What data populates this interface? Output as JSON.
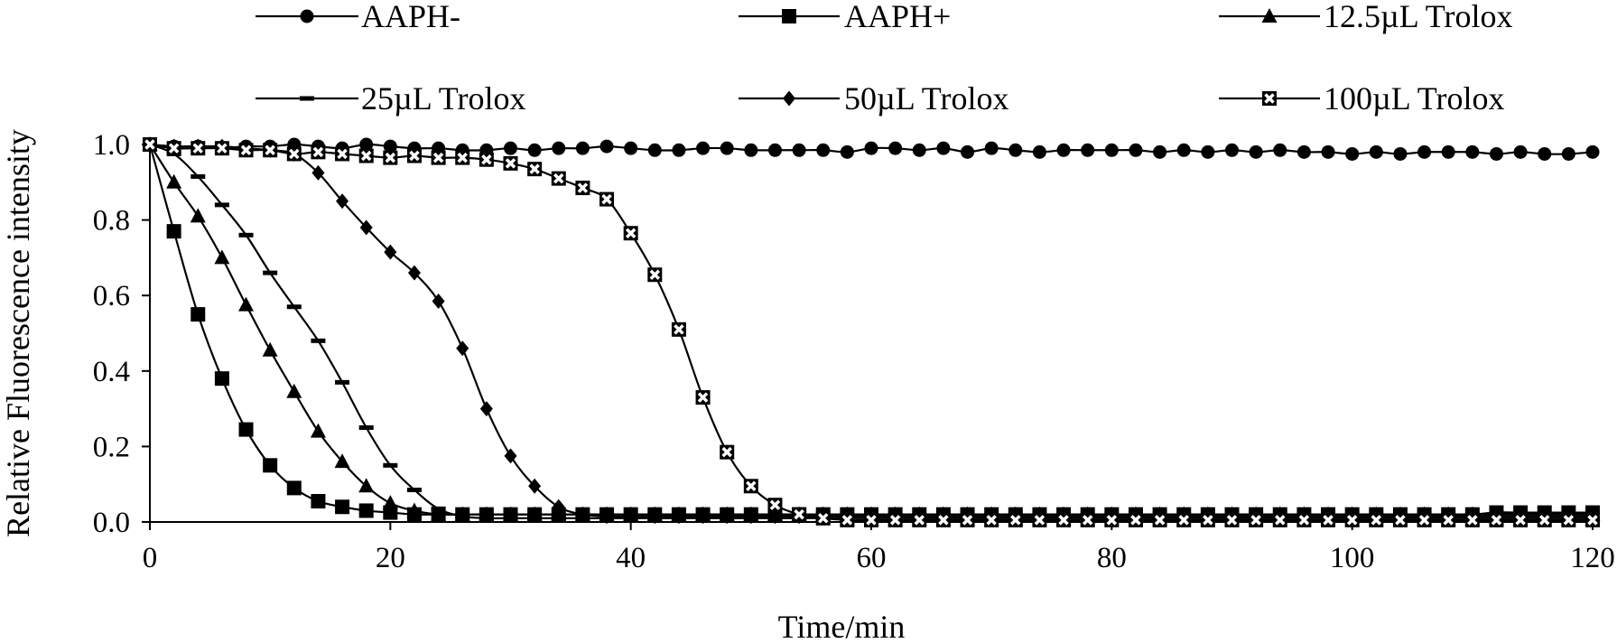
{
  "chart_data": {
    "type": "line",
    "title": "",
    "xlabel": "Time/min",
    "ylabel": "Relative Fluorescence intensity",
    "xlim": [
      0,
      120
    ],
    "ylim": [
      0,
      1.0
    ],
    "x_ticks": [
      "0",
      "20",
      "40",
      "60",
      "80",
      "100",
      "120"
    ],
    "y_ticks": [
      "0.0",
      "0.2",
      "0.4",
      "0.6",
      "0.8",
      "1.0"
    ],
    "grid": false,
    "legend_position": "top",
    "series": [
      {
        "name": "AAPH-",
        "marker": "circle",
        "x": [
          0,
          2,
          4,
          6,
          8,
          10,
          12,
          14,
          16,
          18,
          20,
          22,
          24,
          26,
          28,
          30,
          32,
          34,
          36,
          38,
          40,
          42,
          44,
          46,
          48,
          50,
          52,
          54,
          56,
          58,
          60,
          62,
          64,
          66,
          68,
          70,
          72,
          74,
          76,
          78,
          80,
          82,
          84,
          86,
          88,
          90,
          92,
          94,
          96,
          98,
          100,
          102,
          104,
          106,
          108,
          110,
          112,
          114,
          116,
          118,
          120
        ],
        "y": [
          1.0,
          0.995,
          0.995,
          0.99,
          0.995,
          0.995,
          1.0,
          0.995,
          0.99,
          1.0,
          0.995,
          0.99,
          0.99,
          0.985,
          0.985,
          0.99,
          0.985,
          0.99,
          0.99,
          0.995,
          0.99,
          0.985,
          0.985,
          0.99,
          0.99,
          0.985,
          0.985,
          0.985,
          0.985,
          0.98,
          0.99,
          0.99,
          0.985,
          0.99,
          0.98,
          0.99,
          0.985,
          0.98,
          0.985,
          0.985,
          0.985,
          0.985,
          0.98,
          0.985,
          0.98,
          0.985,
          0.98,
          0.985,
          0.98,
          0.98,
          0.975,
          0.98,
          0.975,
          0.98,
          0.98,
          0.98,
          0.975,
          0.98,
          0.975,
          0.975,
          0.98
        ]
      },
      {
        "name": "AAPH+",
        "marker": "square",
        "x": [
          0,
          2,
          4,
          6,
          8,
          10,
          12,
          14,
          16,
          18,
          20,
          22,
          24,
          26,
          28,
          30,
          32,
          34,
          36,
          38,
          40,
          42,
          44,
          46,
          48,
          50,
          52,
          54,
          56,
          58,
          60,
          62,
          64,
          66,
          68,
          70,
          72,
          74,
          76,
          78,
          80,
          82,
          84,
          86,
          88,
          90,
          92,
          94,
          96,
          98,
          100,
          102,
          104,
          106,
          108,
          110,
          112,
          114,
          116,
          118,
          120
        ],
        "y": [
          1.0,
          0.77,
          0.55,
          0.38,
          0.245,
          0.15,
          0.09,
          0.055,
          0.04,
          0.03,
          0.025,
          0.02,
          0.02,
          0.02,
          0.02,
          0.02,
          0.02,
          0.02,
          0.02,
          0.02,
          0.02,
          0.02,
          0.02,
          0.02,
          0.02,
          0.02,
          0.02,
          0.02,
          0.02,
          0.02,
          0.02,
          0.02,
          0.02,
          0.02,
          0.02,
          0.02,
          0.02,
          0.02,
          0.02,
          0.02,
          0.02,
          0.02,
          0.02,
          0.02,
          0.02,
          0.02,
          0.02,
          0.02,
          0.02,
          0.02,
          0.02,
          0.02,
          0.02,
          0.02,
          0.02,
          0.02,
          0.025,
          0.025,
          0.025,
          0.025,
          0.025
        ]
      },
      {
        "name": "12.5µL Trolox",
        "marker": "triangle",
        "x": [
          0,
          2,
          4,
          6,
          8,
          10,
          12,
          14,
          16,
          18,
          20,
          22,
          24,
          26,
          28,
          30,
          32,
          34,
          36,
          38,
          40,
          42,
          44,
          46,
          48,
          50,
          52,
          54,
          56,
          58,
          60,
          62,
          64,
          66,
          68,
          70,
          72,
          74,
          76,
          78,
          80,
          82,
          84,
          86,
          88,
          90,
          92,
          94,
          96,
          98,
          100,
          102,
          104,
          106,
          108,
          110,
          112,
          114,
          116,
          118,
          120
        ],
        "y": [
          1.0,
          0.9,
          0.81,
          0.7,
          0.575,
          0.455,
          0.345,
          0.24,
          0.16,
          0.095,
          0.05,
          0.03,
          0.02,
          0.02,
          0.02,
          0.02,
          0.02,
          0.02,
          0.02,
          0.02,
          0.02,
          0.02,
          0.02,
          0.02,
          0.02,
          0.02,
          0.02,
          0.02,
          0.02,
          0.02,
          0.02,
          0.02,
          0.02,
          0.02,
          0.02,
          0.02,
          0.02,
          0.02,
          0.02,
          0.02,
          0.02,
          0.02,
          0.02,
          0.02,
          0.02,
          0.02,
          0.02,
          0.02,
          0.02,
          0.02,
          0.02,
          0.02,
          0.02,
          0.02,
          0.02,
          0.02,
          0.02,
          0.02,
          0.02,
          0.02,
          0.02
        ]
      },
      {
        "name": "25µL Trolox",
        "marker": "dash",
        "x": [
          0,
          2,
          4,
          6,
          8,
          10,
          12,
          14,
          16,
          18,
          20,
          22,
          24,
          26,
          28,
          30,
          32,
          34,
          36,
          38,
          40,
          42,
          44,
          46,
          48,
          50,
          52,
          54,
          56,
          58,
          60,
          62,
          64,
          66,
          68,
          70,
          72,
          74,
          76,
          78,
          80,
          82,
          84,
          86,
          88,
          90,
          92,
          94,
          96,
          98,
          100,
          102,
          104,
          106,
          108,
          110,
          112,
          114,
          116,
          118,
          120
        ],
        "y": [
          1.0,
          0.975,
          0.915,
          0.84,
          0.76,
          0.66,
          0.57,
          0.48,
          0.37,
          0.25,
          0.15,
          0.085,
          0.035,
          0.015,
          0.01,
          0.01,
          0.01,
          0.01,
          0.01,
          0.01,
          0.01,
          0.01,
          0.01,
          0.01,
          0.01,
          0.01,
          0.01,
          0.01,
          0.01,
          0.01,
          0.01,
          0.01,
          0.01,
          0.01,
          0.01,
          0.01,
          0.01,
          0.01,
          0.01,
          0.01,
          0.01,
          0.01,
          0.01,
          0.01,
          0.01,
          0.01,
          0.01,
          0.01,
          0.01,
          0.01,
          0.01,
          0.01,
          0.01,
          0.01,
          0.01,
          0.01,
          0.01,
          0.01,
          0.01,
          0.01,
          0.01
        ]
      },
      {
        "name": "50µL Trolox",
        "marker": "diamond",
        "x": [
          0,
          2,
          4,
          6,
          8,
          10,
          12,
          14,
          16,
          18,
          20,
          22,
          24,
          26,
          28,
          30,
          32,
          34,
          36,
          38,
          40,
          42,
          44,
          46,
          48,
          50,
          52,
          54,
          56,
          58,
          60,
          62,
          64,
          66,
          68,
          70,
          72,
          74,
          76,
          78,
          80,
          82,
          84,
          86,
          88,
          90,
          92,
          94,
          96,
          98,
          100,
          102,
          104,
          106,
          108,
          110,
          112,
          114,
          116,
          118,
          120
        ],
        "y": [
          1.0,
          0.995,
          0.995,
          0.995,
          0.99,
          0.985,
          0.975,
          0.925,
          0.85,
          0.78,
          0.715,
          0.66,
          0.585,
          0.46,
          0.3,
          0.175,
          0.095,
          0.04,
          0.02,
          0.015,
          0.015,
          0.015,
          0.015,
          0.015,
          0.015,
          0.015,
          0.015,
          0.015,
          0.015,
          0.015,
          0.015,
          0.015,
          0.015,
          0.015,
          0.015,
          0.015,
          0.015,
          0.015,
          0.015,
          0.015,
          0.015,
          0.015,
          0.015,
          0.015,
          0.015,
          0.015,
          0.015,
          0.015,
          0.015,
          0.015,
          0.015,
          0.015,
          0.015,
          0.015,
          0.015,
          0.015,
          0.015,
          0.015,
          0.015,
          0.015,
          0.015
        ]
      },
      {
        "name": "100µL Trolox",
        "marker": "hollow-square-x",
        "x": [
          0,
          2,
          4,
          6,
          8,
          10,
          12,
          14,
          16,
          18,
          20,
          22,
          24,
          26,
          28,
          30,
          32,
          34,
          36,
          38,
          40,
          42,
          44,
          46,
          48,
          50,
          52,
          54,
          56,
          58,
          60,
          62,
          64,
          66,
          68,
          70,
          72,
          74,
          76,
          78,
          80,
          82,
          84,
          86,
          88,
          90,
          92,
          94,
          96,
          98,
          100,
          102,
          104,
          106,
          108,
          110,
          112,
          114,
          116,
          118,
          120
        ],
        "y": [
          1.0,
          0.99,
          0.99,
          0.99,
          0.985,
          0.985,
          0.975,
          0.98,
          0.975,
          0.97,
          0.965,
          0.97,
          0.965,
          0.965,
          0.96,
          0.95,
          0.935,
          0.91,
          0.885,
          0.855,
          0.765,
          0.655,
          0.51,
          0.33,
          0.185,
          0.095,
          0.045,
          0.02,
          0.01,
          0.005,
          0.005,
          0.005,
          0.005,
          0.005,
          0.005,
          0.005,
          0.005,
          0.005,
          0.005,
          0.005,
          0.005,
          0.005,
          0.005,
          0.005,
          0.005,
          0.005,
          0.005,
          0.005,
          0.005,
          0.005,
          0.005,
          0.005,
          0.005,
          0.005,
          0.005,
          0.005,
          0.005,
          0.005,
          0.005,
          0.005,
          0.005
        ]
      }
    ]
  }
}
